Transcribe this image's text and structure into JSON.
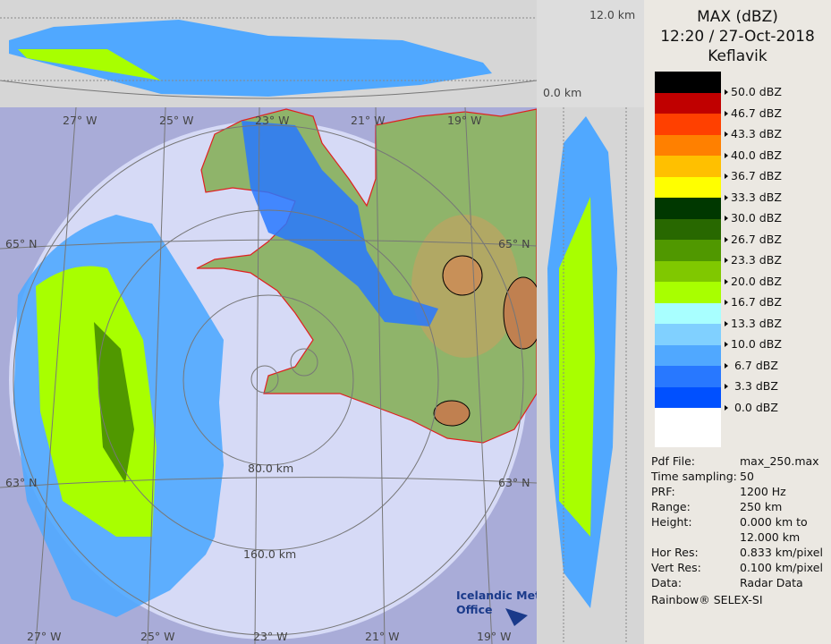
{
  "header": {
    "product": "MAX (dBZ)",
    "datetime": "12:20 / 27-Oct-2018",
    "site": "Keflavik"
  },
  "legend": {
    "items": [
      {
        "label": "50.0 dBZ",
        "color": "#000000"
      },
      {
        "label": "46.7 dBZ",
        "color": "#c00000"
      },
      {
        "label": "43.3 dBZ",
        "color": "#ff4000"
      },
      {
        "label": "40.0 dBZ",
        "color": "#ff8000"
      },
      {
        "label": "36.7 dBZ",
        "color": "#ffc000"
      },
      {
        "label": "33.3 dBZ",
        "color": "#ffff00"
      },
      {
        "label": "30.0 dBZ",
        "color": "#003800"
      },
      {
        "label": "26.7 dBZ",
        "color": "#286800"
      },
      {
        "label": "23.3 dBZ",
        "color": "#509800"
      },
      {
        "label": "20.0 dBZ",
        "color": "#80c800"
      },
      {
        "label": "16.7 dBZ",
        "color": "#a8ff00"
      },
      {
        "label": "13.3 dBZ",
        "color": "#a8ffff"
      },
      {
        "label": "10.0 dBZ",
        "color": "#80d0ff"
      },
      {
        "label": " 6.7 dBZ",
        "color": "#50a8ff"
      },
      {
        "label": " 3.3 dBZ",
        "color": "#2878ff"
      },
      {
        "label": " 0.0 dBZ",
        "color": "#0050ff"
      }
    ],
    "below_color": "#ffffff"
  },
  "info": [
    {
      "key": "Pdf File:",
      "value": "max_250.max"
    },
    {
      "key": "Time sampling:",
      "value": "50"
    },
    {
      "key": "PRF:",
      "value": "1200 Hz"
    },
    {
      "key": "Range:",
      "value": "250 km"
    },
    {
      "key": "Height:",
      "value": "0.000 km to"
    },
    {
      "key": "",
      "value": "12.000 km"
    },
    {
      "key": "Hor Res:",
      "value": "0.833 km/pixel"
    },
    {
      "key": "Vert Res:",
      "value": "0.100 km/pixel"
    },
    {
      "key": "Data:",
      "value": "Radar Data"
    }
  ],
  "credit": "Rainbow® SELEX-SI",
  "height_axis": {
    "top": "12.0 km",
    "bottom": "0.0 km"
  },
  "map": {
    "lon_labels": [
      "27° W",
      "25° W",
      "23° W",
      "21° W",
      "19° W"
    ],
    "lat_labels": [
      "65° N",
      "63° N"
    ],
    "range_labels": [
      "80.0 km",
      "160.0 km"
    ],
    "logo": "Icelandic Met Office",
    "colors": {
      "outside": "#a9acd8",
      "range_disc": "#d6daf6",
      "land": "#8fb46a",
      "coast": "#e02020"
    }
  }
}
